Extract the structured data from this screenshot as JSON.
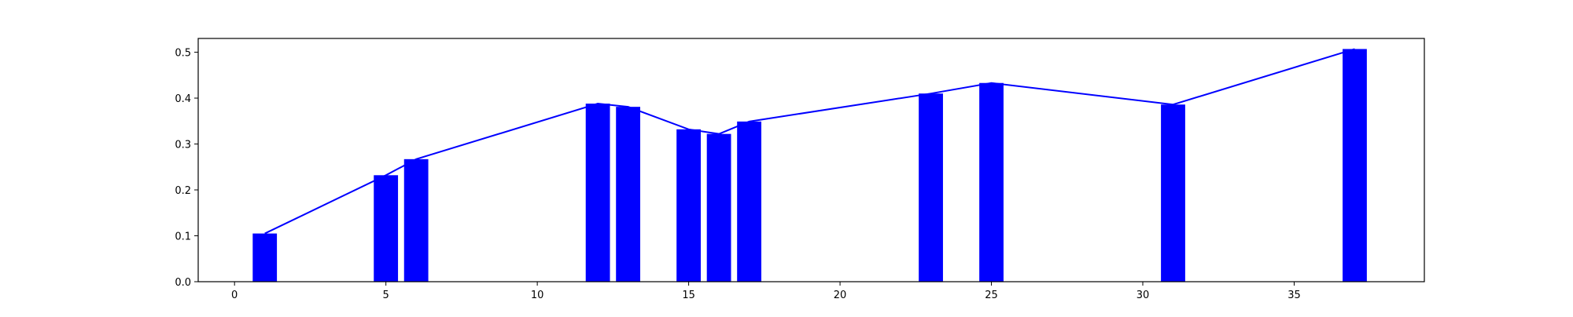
{
  "chart_data": {
    "type": "bar",
    "title": "",
    "xlabel": "",
    "ylabel": "",
    "xlim": [
      -1.2,
      39.3
    ],
    "ylim": [
      0.0,
      0.53
    ],
    "grid": false,
    "x_ticks": [
      {
        "value": 0,
        "label": "0"
      },
      {
        "value": 5,
        "label": "5"
      },
      {
        "value": 10,
        "label": "10"
      },
      {
        "value": 15,
        "label": "15"
      },
      {
        "value": 20,
        "label": "20"
      },
      {
        "value": 25,
        "label": "25"
      },
      {
        "value": 30,
        "label": "30"
      },
      {
        "value": 35,
        "label": "35"
      }
    ],
    "y_ticks": [
      {
        "value": 0.0,
        "label": "0.0"
      },
      {
        "value": 0.1,
        "label": "0.1"
      },
      {
        "value": 0.2,
        "label": "0.2"
      },
      {
        "value": 0.3,
        "label": "0.3"
      },
      {
        "value": 0.4,
        "label": "0.4"
      },
      {
        "value": 0.5,
        "label": "0.5"
      }
    ],
    "bar_color": "#0000ff",
    "line_color": "#0000ff",
    "bar_width": 0.8,
    "bars": {
      "x": [
        1,
        5,
        6,
        12,
        13,
        15,
        16,
        17,
        23,
        25,
        31,
        37
      ],
      "values": [
        0.105,
        0.232,
        0.267,
        0.388,
        0.381,
        0.332,
        0.322,
        0.349,
        0.41,
        0.433,
        0.386,
        0.507
      ]
    },
    "line": {
      "x": [
        1,
        5,
        6,
        12,
        13,
        15,
        16,
        17,
        23,
        25,
        31,
        37
      ],
      "values": [
        0.105,
        0.232,
        0.267,
        0.388,
        0.381,
        0.332,
        0.322,
        0.349,
        0.41,
        0.433,
        0.386,
        0.507
      ]
    }
  }
}
